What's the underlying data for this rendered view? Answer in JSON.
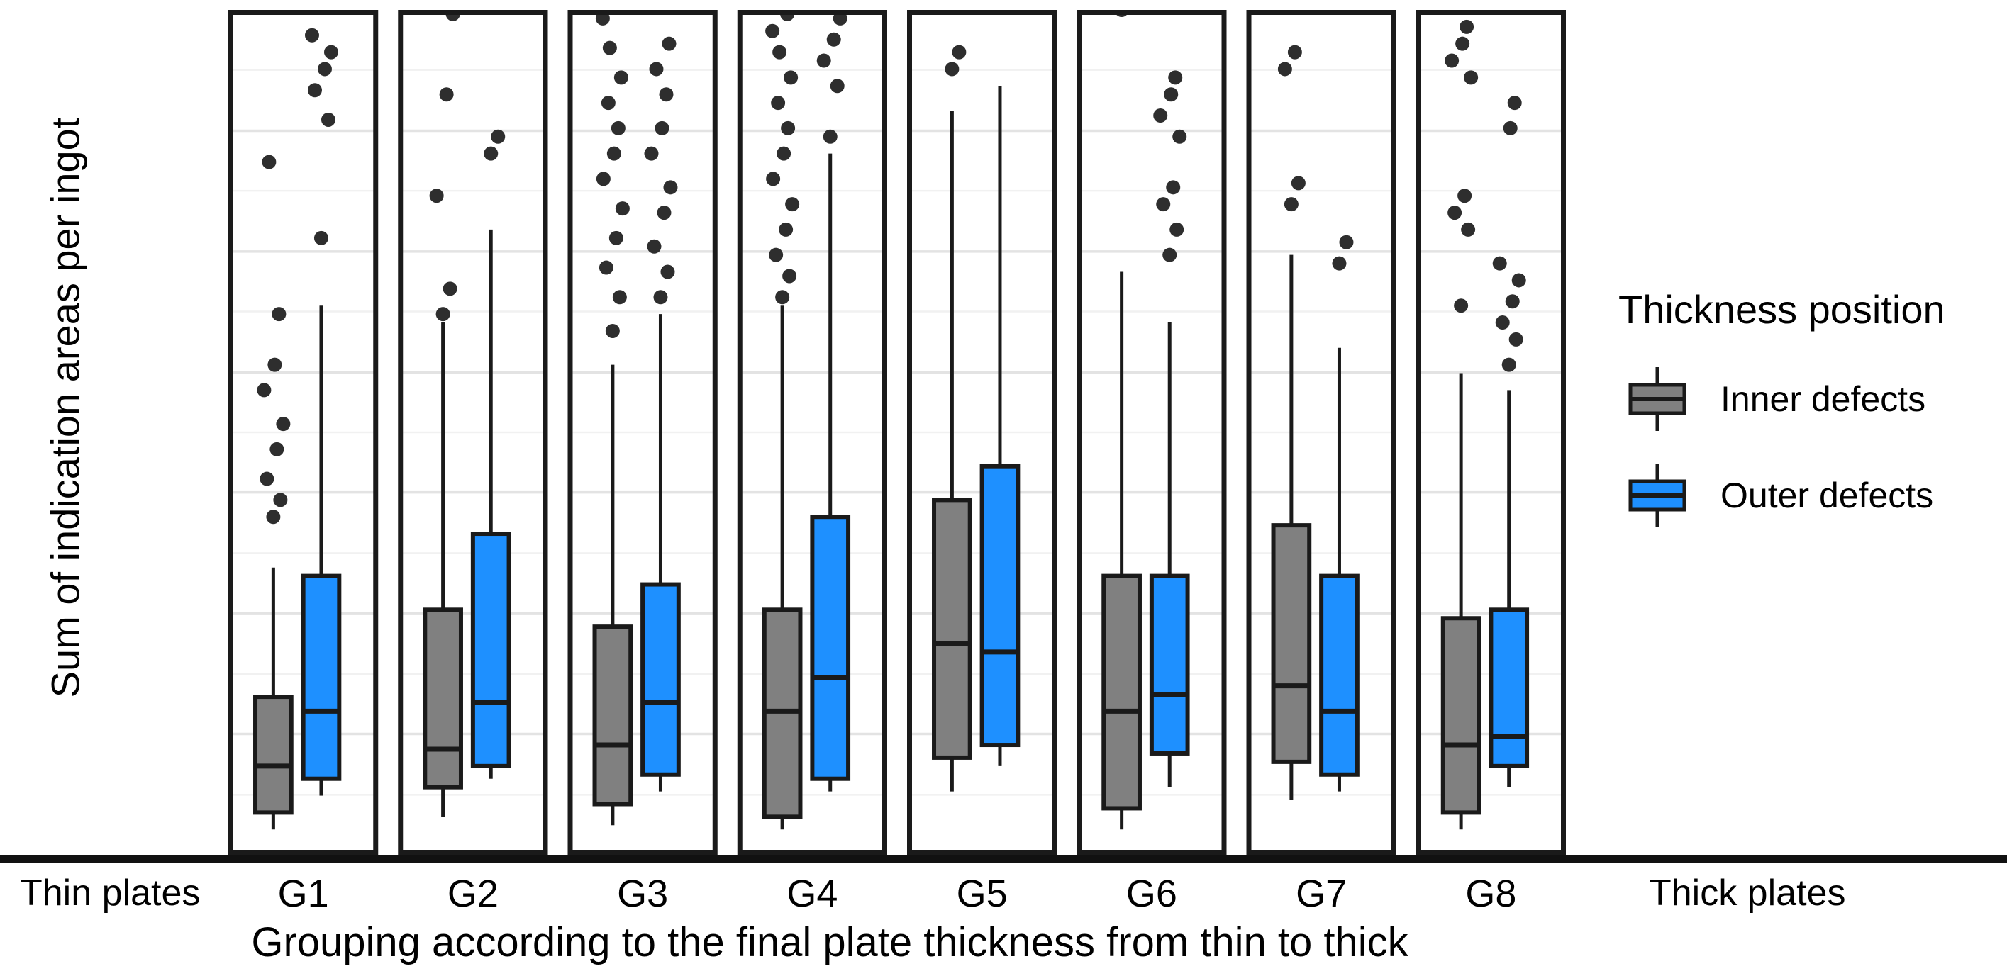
{
  "figure": {
    "y_axis_title": "Sum of indication areas per ingot",
    "x_axis_title": "Grouping according to the final plate thickness from thin to thick",
    "left_annotation": "Thin plates",
    "right_annotation": "Thick plates"
  },
  "legend": {
    "title": "Thickness position",
    "items": [
      {
        "key": "inner",
        "label": "Inner defects",
        "color": "#808080"
      },
      {
        "key": "outer",
        "label": "Outer defects",
        "color": "#1E90FF"
      }
    ]
  },
  "colors": {
    "inner_fill": "#808080",
    "outer_fill": "#1E90FF",
    "frame": "#1a1a1a",
    "stroke": "#1a1a1a",
    "outlier": "#2e2e2e",
    "grid_major": "#e3e3e3",
    "grid_minor": "#f1f1f1",
    "axis_line": "#111111",
    "text": "#000000"
  },
  "chart_data": {
    "type": "boxplot",
    "title": "",
    "xlabel": "Grouping according to the final plate thickness from thin to thick",
    "ylabel": "Sum of indication areas per ingot",
    "note": "No numeric y tick labels are shown in the figure; all box statistics are on a 0-100 relative scale estimated from panel height. Faceted by group G1-G8, two boxplots per facet (gray = Inner defects, blue = Outer defects), horizontal gridlines on, legend on right.",
    "ylim": [
      0,
      100
    ],
    "y_tick_labels": [],
    "grid": {
      "major": [
        14.3,
        28.6,
        42.9,
        57.1,
        71.4,
        85.7
      ],
      "minor": [
        7.1,
        21.4,
        35.7,
        50.0,
        64.3,
        78.6,
        92.9
      ]
    },
    "categories": [
      "G1",
      "G2",
      "G3",
      "G4",
      "G5",
      "G6",
      "G7",
      "G8"
    ],
    "series_names": [
      "Inner defects",
      "Outer defects"
    ],
    "facets": [
      {
        "label": "G1",
        "inner": {
          "whisker_low": 3,
          "q1": 5,
          "median": 10.5,
          "q3": 18.7,
          "whisker_high": 34,
          "outliers": [
            40,
            42,
            44.5,
            48,
            51,
            55,
            58,
            64,
            82
          ]
        },
        "outer": {
          "whisker_low": 7,
          "q1": 9,
          "median": 17,
          "q3": 33,
          "whisker_high": 65,
          "outliers": [
            73,
            87,
            90.5,
            93,
            95,
            97
          ]
        }
      },
      {
        "label": "G2",
        "inner": {
          "whisker_low": 4.5,
          "q1": 8,
          "median": 12.5,
          "q3": 29,
          "whisker_high": 63,
          "outliers": [
            64,
            67,
            78,
            90,
            99.5
          ]
        },
        "outer": {
          "whisker_low": 9,
          "q1": 10.5,
          "median": 18,
          "q3": 38,
          "whisker_high": 74,
          "outliers": [
            83,
            85
          ]
        }
      },
      {
        "label": "G3",
        "inner": {
          "whisker_low": 3.5,
          "q1": 6,
          "median": 13,
          "q3": 27,
          "whisker_high": 58,
          "outliers": [
            62,
            66,
            69.5,
            73,
            76.5,
            80,
            83,
            86,
            89,
            92,
            95.5,
            99
          ]
        },
        "outer": {
          "whisker_low": 7.5,
          "q1": 9.5,
          "median": 18,
          "q3": 32,
          "whisker_high": 64,
          "outliers": [
            66,
            69,
            72,
            76,
            79,
            83,
            86,
            90,
            93,
            96
          ]
        }
      },
      {
        "label": "G4",
        "inner": {
          "whisker_low": 3,
          "q1": 4.5,
          "median": 17,
          "q3": 29,
          "whisker_high": 65,
          "outliers": [
            66,
            68.5,
            71,
            74,
            77,
            80,
            83,
            86,
            89,
            92,
            95,
            97.5,
            99.5
          ]
        },
        "outer": {
          "whisker_low": 7.5,
          "q1": 9,
          "median": 21,
          "q3": 40,
          "whisker_high": 83,
          "outliers": [
            85,
            91,
            94,
            96.5,
            99
          ]
        }
      },
      {
        "label": "G5",
        "inner": {
          "whisker_low": 7.5,
          "q1": 11.5,
          "median": 25,
          "q3": 42,
          "whisker_high": 88,
          "outliers": [
            93,
            95
          ]
        },
        "outer": {
          "whisker_low": 10.5,
          "q1": 13,
          "median": 24,
          "q3": 46,
          "whisker_high": 91,
          "outliers": []
        }
      },
      {
        "label": "G6",
        "inner": {
          "whisker_low": 3,
          "q1": 5.5,
          "median": 17,
          "q3": 33,
          "whisker_high": 69,
          "outliers": [
            100
          ]
        },
        "outer": {
          "whisker_low": 8,
          "q1": 12,
          "median": 19,
          "q3": 33,
          "whisker_high": 63,
          "outliers": [
            71,
            74,
            77,
            79,
            85,
            87.5,
            90,
            92
          ]
        }
      },
      {
        "label": "G7",
        "inner": {
          "whisker_low": 6.5,
          "q1": 11,
          "median": 20,
          "q3": 39,
          "whisker_high": 71,
          "outliers": [
            77,
            79.5,
            93,
            95
          ]
        },
        "outer": {
          "whisker_low": 7.5,
          "q1": 9.5,
          "median": 17,
          "q3": 33,
          "whisker_high": 60,
          "outliers": [
            70,
            72.5
          ]
        }
      },
      {
        "label": "G8",
        "inner": {
          "whisker_low": 3,
          "q1": 5,
          "median": 13,
          "q3": 28,
          "whisker_high": 57,
          "outliers": [
            65,
            74,
            76,
            78,
            92,
            94,
            96,
            98
          ]
        },
        "outer": {
          "whisker_low": 8,
          "q1": 10.5,
          "median": 14,
          "q3": 29,
          "whisker_high": 55,
          "outliers": [
            58,
            61,
            63,
            65.5,
            68,
            70,
            86,
            89
          ]
        }
      }
    ]
  }
}
